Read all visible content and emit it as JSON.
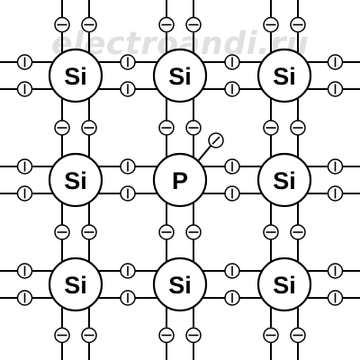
{
  "watermark": "electroandi.ru",
  "lattice": {
    "rows": [
      [
        "Si",
        "Si",
        "Si"
      ],
      [
        "Si",
        "P",
        "Si"
      ],
      [
        "Si",
        "Si",
        "Si"
      ]
    ],
    "dopant_atom": "P",
    "host_atom": "Si",
    "free_electron_on": "P"
  },
  "symbols": {
    "electron_horizontal_bond": "minus-circle-rotated",
    "electron_vertical_bond": "minus-circle",
    "free_electron": "minus-circle-rotated"
  },
  "colors": {
    "line": "#000000",
    "background": "#ffffff",
    "watermark": "#e0e0e0"
  }
}
